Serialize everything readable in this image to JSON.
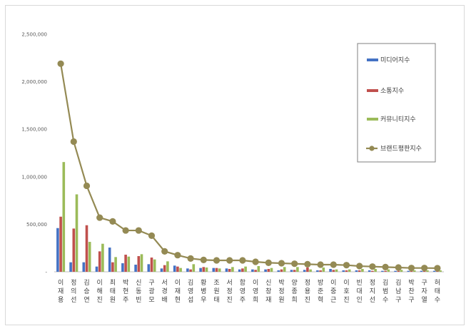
{
  "chart_data": {
    "type": "bar",
    "title": "",
    "xlabel": "",
    "ylabel": "",
    "ylim": [
      0,
      2500000
    ],
    "yticks": [
      0,
      500000,
      1000000,
      1500000,
      2000000,
      2500000
    ],
    "ytick_labels": [
      "-",
      "500,000",
      "1,000,000",
      "1,500,000",
      "2,000,000",
      "2,500,000"
    ],
    "grid": false,
    "legend": "right",
    "categories": [
      "이재용",
      "정의선",
      "김승연",
      "이해진",
      "최태원",
      "박현주",
      "신동빈",
      "구광모",
      "서경배",
      "이재현",
      "김영섭",
      "황병우",
      "조원태",
      "서정진",
      "함영주",
      "이영희",
      "신창재",
      "박정원",
      "양종희",
      "정용진",
      "방준혁",
      "이중근",
      "이호진",
      "빈대인",
      "정지선",
      "김범수",
      "김남구",
      "박찬구",
      "구자열",
      "허태수"
    ],
    "series": [
      {
        "name": "미디어지수",
        "color": "#4472c4",
        "values": [
          460000,
          100000,
          100000,
          55000,
          255000,
          90000,
          75000,
          80000,
          35000,
          65000,
          35000,
          40000,
          40000,
          35000,
          25000,
          25000,
          25000,
          15000,
          20000,
          20000,
          15000,
          30000,
          15000,
          15000,
          15000,
          10000,
          10000,
          10000,
          10000,
          10000
        ]
      },
      {
        "name": "소통지수",
        "color": "#c0504d",
        "values": [
          580000,
          455000,
          490000,
          215000,
          100000,
          180000,
          165000,
          150000,
          70000,
          55000,
          25000,
          50000,
          40000,
          30000,
          35000,
          20000,
          30000,
          25000,
          20000,
          45000,
          15000,
          20000,
          15000,
          15000,
          10000,
          10000,
          10000,
          10000,
          10000,
          10000
        ]
      },
      {
        "name": "커뮤니티지수",
        "color": "#9bbb59",
        "values": [
          1155000,
          815000,
          315000,
          295000,
          155000,
          160000,
          185000,
          130000,
          110000,
          40000,
          80000,
          45000,
          35000,
          50000,
          55000,
          60000,
          40000,
          50000,
          50000,
          25000,
          45000,
          25000,
          25000,
          30000,
          30000,
          25000,
          20000,
          15000,
          15000,
          15000
        ]
      },
      {
        "name": "브랜드평판지수",
        "color": "#948a54",
        "type": "line",
        "values": [
          2190000,
          1370000,
          905000,
          570000,
          530000,
          435000,
          435000,
          380000,
          215000,
          175000,
          140000,
          125000,
          120000,
          120000,
          120000,
          105000,
          95000,
          90000,
          85000,
          80000,
          75000,
          75000,
          70000,
          60000,
          55000,
          50000,
          45000,
          40000,
          40000,
          38000
        ]
      }
    ]
  }
}
